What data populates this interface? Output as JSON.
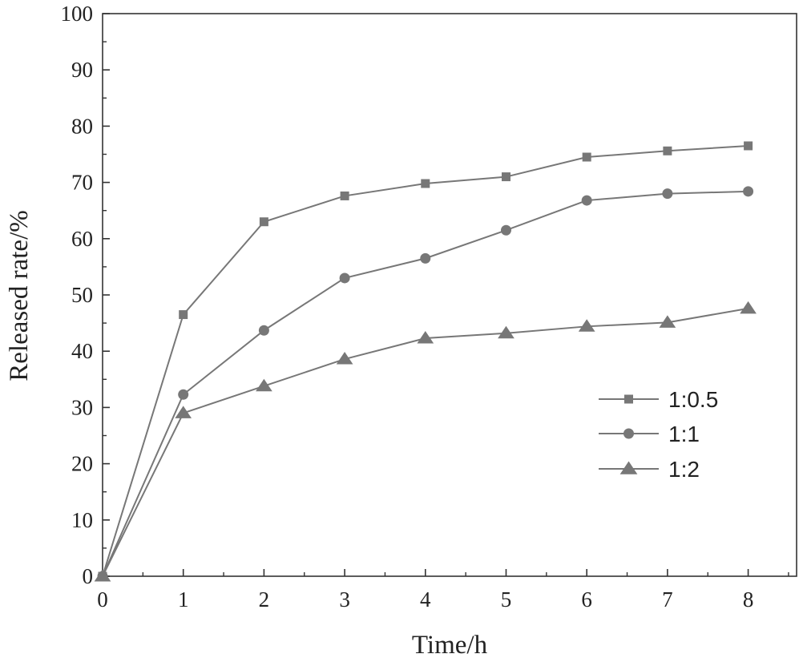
{
  "chart_data": {
    "type": "line",
    "title": "",
    "xlabel": "Time/h",
    "ylabel": "Released rate/%",
    "x": [
      0,
      1,
      2,
      3,
      4,
      5,
      6,
      7,
      8
    ],
    "xlim": [
      0,
      8.6
    ],
    "ylim": [
      0,
      100
    ],
    "xticks": [
      0,
      1,
      2,
      3,
      4,
      5,
      6,
      7,
      8
    ],
    "yticks": [
      0,
      10,
      20,
      30,
      40,
      50,
      60,
      70,
      80,
      90,
      100
    ],
    "grid": false,
    "legend_position": "center-right",
    "series": [
      {
        "name": "1:0.5",
        "marker": "square",
        "values": [
          0,
          46.5,
          63,
          67.6,
          69.8,
          71,
          74.5,
          75.6,
          76.5
        ]
      },
      {
        "name": "1:1",
        "marker": "circle",
        "values": [
          0,
          32.3,
          43.7,
          53,
          56.5,
          61.5,
          66.8,
          68,
          68.4
        ]
      },
      {
        "name": "1:2",
        "marker": "triangle",
        "values": [
          0,
          29,
          33.8,
          38.6,
          42.3,
          43.2,
          44.4,
          45.1,
          47.6
        ]
      }
    ],
    "colors": {
      "line": "#777777",
      "marker": "#777777",
      "axis": "#333333",
      "text": "#222222"
    }
  }
}
